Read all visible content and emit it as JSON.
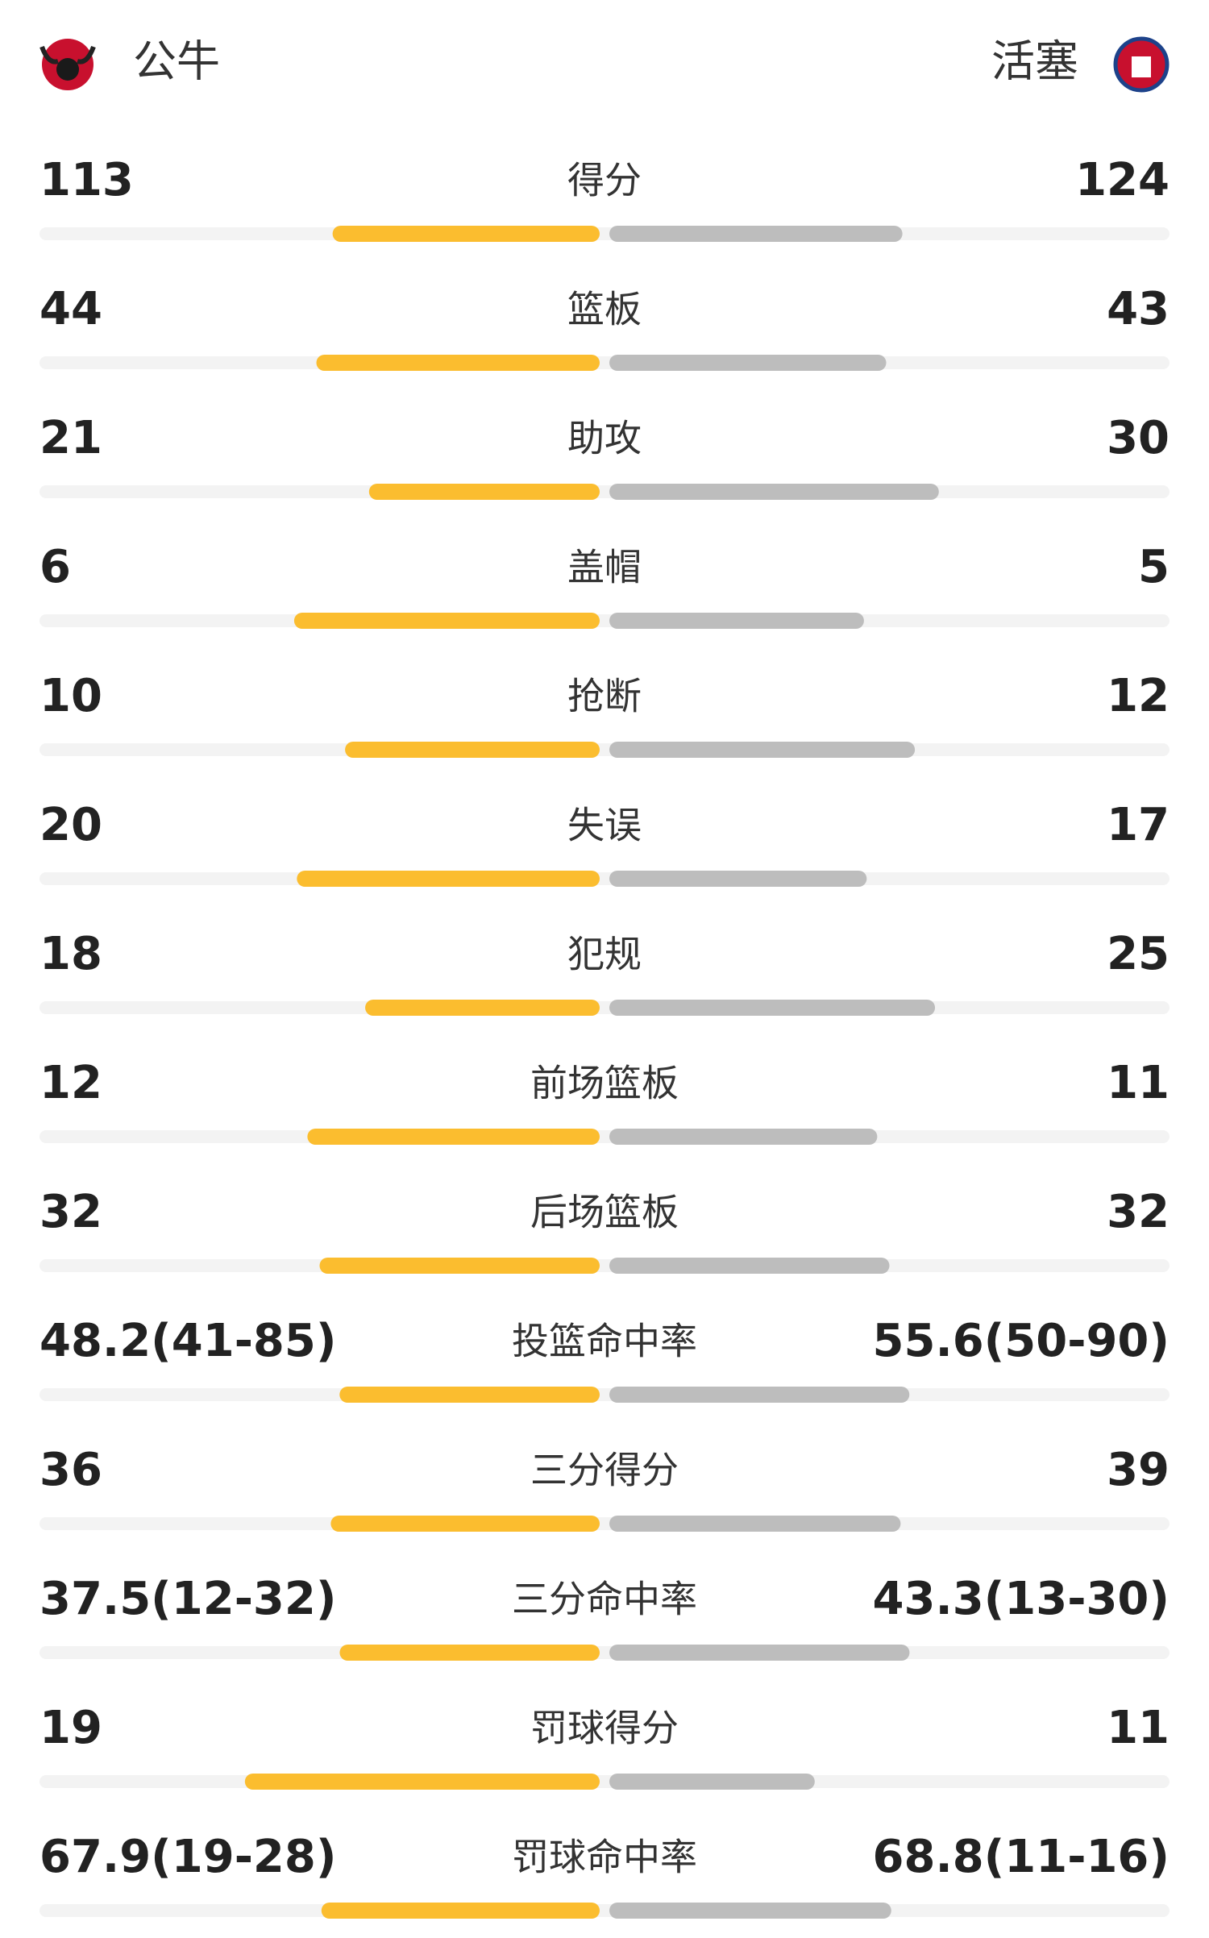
{
  "header": {
    "home_team": "公牛",
    "away_team": "活塞"
  },
  "home_color": "#fbbd2f",
  "away_color": "#bdbdbd",
  "track_color": "#f3f3f3",
  "rows": [
    {
      "label": "得分",
      "home": 113,
      "away": 124
    },
    {
      "label": "篮板",
      "home": 44,
      "away": 43
    },
    {
      "label": "助攻",
      "home": 21,
      "away": 30
    },
    {
      "label": "盖帽",
      "home": 6,
      "away": 5
    },
    {
      "label": "抢断",
      "home": 10,
      "away": 12
    },
    {
      "label": "失误",
      "home": 20,
      "away": 17
    },
    {
      "label": "犯规",
      "home": 18,
      "away": 25
    },
    {
      "label": "前场篮板",
      "home": 12,
      "away": 11
    },
    {
      "label": "后场篮板",
      "home": 32,
      "away": 32
    },
    {
      "label": "投篮命中率",
      "home": {
        "value": 48.2,
        "label": "48.2(41-85)"
      },
      "away": {
        "value": 55.6,
        "label": "55.6(50-90)"
      }
    },
    {
      "label": "三分得分",
      "home": 36,
      "away": 39
    },
    {
      "label": "三分命中率",
      "home": {
        "value": 37.5,
        "label": "37.5(12-32)"
      },
      "away": {
        "value": 43.3,
        "label": "43.3(13-30)"
      }
    },
    {
      "label": "罚球得分",
      "home": 19,
      "away": 11
    },
    {
      "label": "罚球命中率",
      "home": {
        "value": 67.9,
        "label": "67.9(19-28)"
      },
      "away": {
        "value": 68.8,
        "label": "68.8(11-16)"
      }
    }
  ]
}
